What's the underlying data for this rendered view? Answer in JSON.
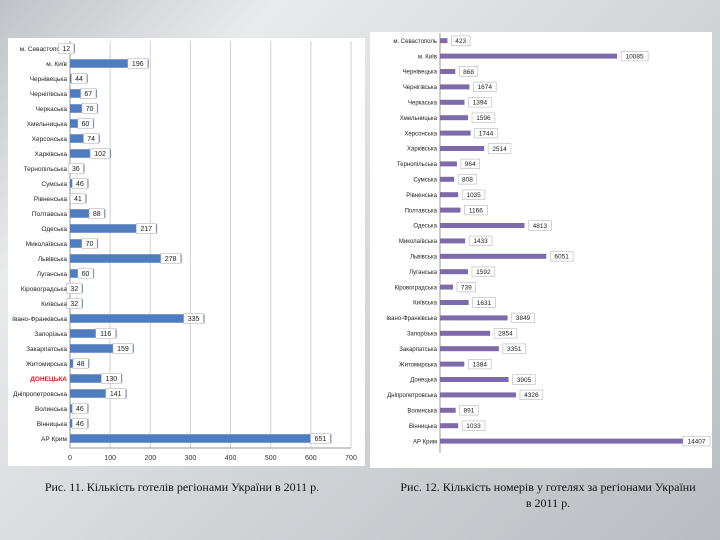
{
  "captions": {
    "left": "Рис. 11. Кількість готелів регіонами України в 2011 р.",
    "right": "Рис. 12. Кількість номерів у готелях за регіонами України в 2011 р."
  },
  "colors": {
    "bar": "#4f7bbf",
    "bar_right": "#7d6aab",
    "highlight_label": "#d62020",
    "text": "#222222",
    "grid": "#d0d0d0",
    "axis": "#9a9a9a"
  },
  "chart_data": [
    {
      "type": "bar",
      "orientation": "horizontal",
      "title": "Кількість готелів регіонами України в 2011 р.",
      "categories": [
        "м. Севастополь",
        "м. Київ",
        "Чернівецька",
        "Чернігівська",
        "Черкаська",
        "Хмельницька",
        "Херсонська",
        "Харківська",
        "Тернопільська",
        "Сумська",
        "Рівненська",
        "Полтавська",
        "Одеська",
        "Миколаївська",
        "Львівська",
        "Луганська",
        "Кіровоградська",
        "Київська",
        "Івано-Франківська",
        "Запорізька",
        "Закарпатська",
        "Житомирська",
        "ДОНЕЦЬКА",
        "Дніпропетровська",
        "Волинська",
        "Вінницька",
        "АР Крим"
      ],
      "values": [
        12,
        196,
        44,
        67,
        70,
        60,
        74,
        102,
        36,
        46,
        41,
        88,
        217,
        70,
        278,
        60,
        32,
        32,
        335,
        116,
        159,
        48,
        130,
        141,
        46,
        46,
        651
      ],
      "value_labels": [
        "12",
        "196",
        "44",
        "67",
        "70",
        "60",
        "74",
        "102",
        "36",
        "46",
        "41",
        "88",
        "217",
        "70",
        "278",
        "60",
        "32",
        "32",
        "335",
        "116",
        "159",
        "48",
        "130",
        "141",
        "46",
        "46",
        "651"
      ],
      "highlight_category": "ДОНЕЦЬКА",
      "xlim": [
        0,
        700
      ],
      "xticks": [
        "0",
        "100",
        "200",
        "300",
        "400",
        "500",
        "600",
        "700"
      ],
      "grid": true
    },
    {
      "type": "bar",
      "orientation": "horizontal",
      "title": "Кількість номерів у готелях за регіонами України в 2011 р.",
      "categories": [
        "м. Севастополь",
        "м. Київ",
        "Чернівецька",
        "Чернігівська",
        "Черкаська",
        "Хмельницька",
        "Херсонська",
        "Харківська",
        "Тернопільська",
        "Сумська",
        "Рівненська",
        "Полтавська",
        "Одеська",
        "Миколаївська",
        "Львівська",
        "Луганська",
        "Кіровоградська",
        "Київська",
        "Івано-Франківська",
        "Запорізька",
        "Закарпатська",
        "Житомирська",
        "Донецька",
        "Дніпропетровська",
        "Волинська",
        "Вінницька",
        "АР Крим"
      ],
      "values": [
        423,
        10085,
        868,
        1674,
        1394,
        1596,
        1744,
        2514,
        964,
        808,
        1035,
        1166,
        4813,
        1433,
        6051,
        1592,
        739,
        1631,
        3849,
        2854,
        3351,
        1384,
        3905,
        4326,
        891,
        1033,
        14407
      ],
      "value_labels": [
        "423",
        "10085",
        "868",
        "1674",
        "1394",
        "1596",
        "1744",
        "2514",
        "964",
        "808",
        "1035",
        "1166",
        "4813",
        "1433",
        "6051",
        "1592",
        "739",
        "1631",
        "3849",
        "2854",
        "3351",
        "1384",
        "3905",
        "4326",
        "891",
        "1033",
        "14407"
      ],
      "xlim": [
        0,
        14407
      ]
    }
  ]
}
